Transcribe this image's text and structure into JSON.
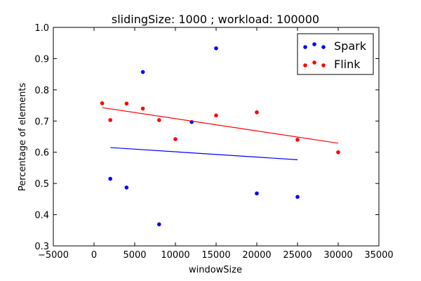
{
  "chart_data": {
    "type": "scatter",
    "title": "slidingSize: 1000 ; workload: 100000",
    "xlabel": "windowSize",
    "ylabel": "Percentage of elements",
    "xlim": [
      -5000,
      35000
    ],
    "ylim": [
      0.3,
      1.0
    ],
    "xticks": [
      -5000,
      0,
      5000,
      10000,
      15000,
      20000,
      25000,
      30000,
      35000
    ],
    "yticks": [
      0.3,
      0.4,
      0.5,
      0.6,
      0.7,
      0.8,
      0.9,
      1.0
    ],
    "grid": false,
    "legend_position": "top-right",
    "series": [
      {
        "name": "Spark",
        "color": "#0000ff",
        "points": [
          [
            2000,
            0.515
          ],
          [
            4000,
            0.487
          ],
          [
            6000,
            0.857
          ],
          [
            8000,
            0.369
          ],
          [
            12000,
            0.697
          ],
          [
            15000,
            0.933
          ],
          [
            20000,
            0.468
          ],
          [
            25000,
            0.457
          ]
        ],
        "trend": [
          [
            2000,
            0.615
          ],
          [
            25000,
            0.576
          ]
        ]
      },
      {
        "name": "Flink",
        "color": "#ff0000",
        "points": [
          [
            1000,
            0.757
          ],
          [
            2000,
            0.703
          ],
          [
            4000,
            0.756
          ],
          [
            6000,
            0.74
          ],
          [
            8000,
            0.703
          ],
          [
            10000,
            0.642
          ],
          [
            15000,
            0.718
          ],
          [
            20000,
            0.728
          ],
          [
            25000,
            0.64
          ],
          [
            30000,
            0.6
          ]
        ],
        "trend": [
          [
            1000,
            0.743
          ],
          [
            30000,
            0.629
          ]
        ]
      }
    ]
  }
}
